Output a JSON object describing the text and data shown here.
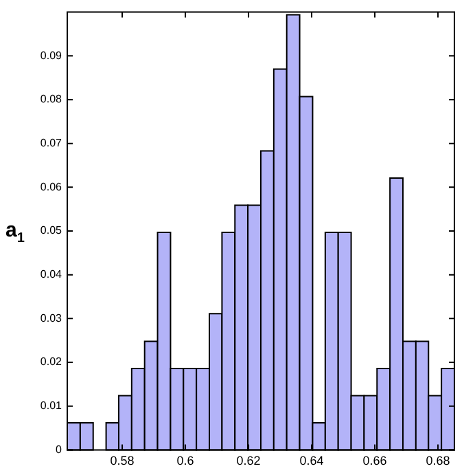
{
  "chart_data": {
    "type": "histogram",
    "ylabel": "a$_{1}$",
    "bins": [
      0.5626,
      0.5667,
      0.5708,
      0.5749,
      0.5789,
      0.583,
      0.5871,
      0.5912,
      0.5953,
      0.5994,
      0.6035,
      0.6076,
      0.6116,
      0.6157,
      0.6198,
      0.6239,
      0.628,
      0.6321,
      0.6362,
      0.6403,
      0.6443,
      0.6484,
      0.6525,
      0.6566,
      0.6607,
      0.6648,
      0.6689,
      0.673,
      0.677,
      0.6811,
      0.6852
    ],
    "values": [
      0.0062,
      0.0062,
      0,
      0.0062,
      0.0124,
      0.0186,
      0.0248,
      0.0497,
      0.0186,
      0.0186,
      0.0186,
      0.0311,
      0.0497,
      0.0559,
      0.0559,
      0.0683,
      0.087,
      0.0994,
      0.0807,
      0.0062,
      0.0497,
      0.0497,
      0.0124,
      0.0124,
      0.0186,
      0.0621,
      0.0248,
      0.0248,
      0.0124,
      0.0186
    ],
    "color": "#b3b3f8",
    "xlim": [
      0.5626,
      0.6852
    ],
    "xticks": [
      0.58,
      0.6,
      0.62,
      0.64,
      0.66,
      0.68
    ],
    "ylim": [
      0,
      0.1
    ],
    "yticks": [
      0,
      0.01,
      0.02,
      0.03,
      0.04,
      0.05,
      0.06,
      0.07,
      0.08,
      0.09
    ],
    "grid": false
  }
}
